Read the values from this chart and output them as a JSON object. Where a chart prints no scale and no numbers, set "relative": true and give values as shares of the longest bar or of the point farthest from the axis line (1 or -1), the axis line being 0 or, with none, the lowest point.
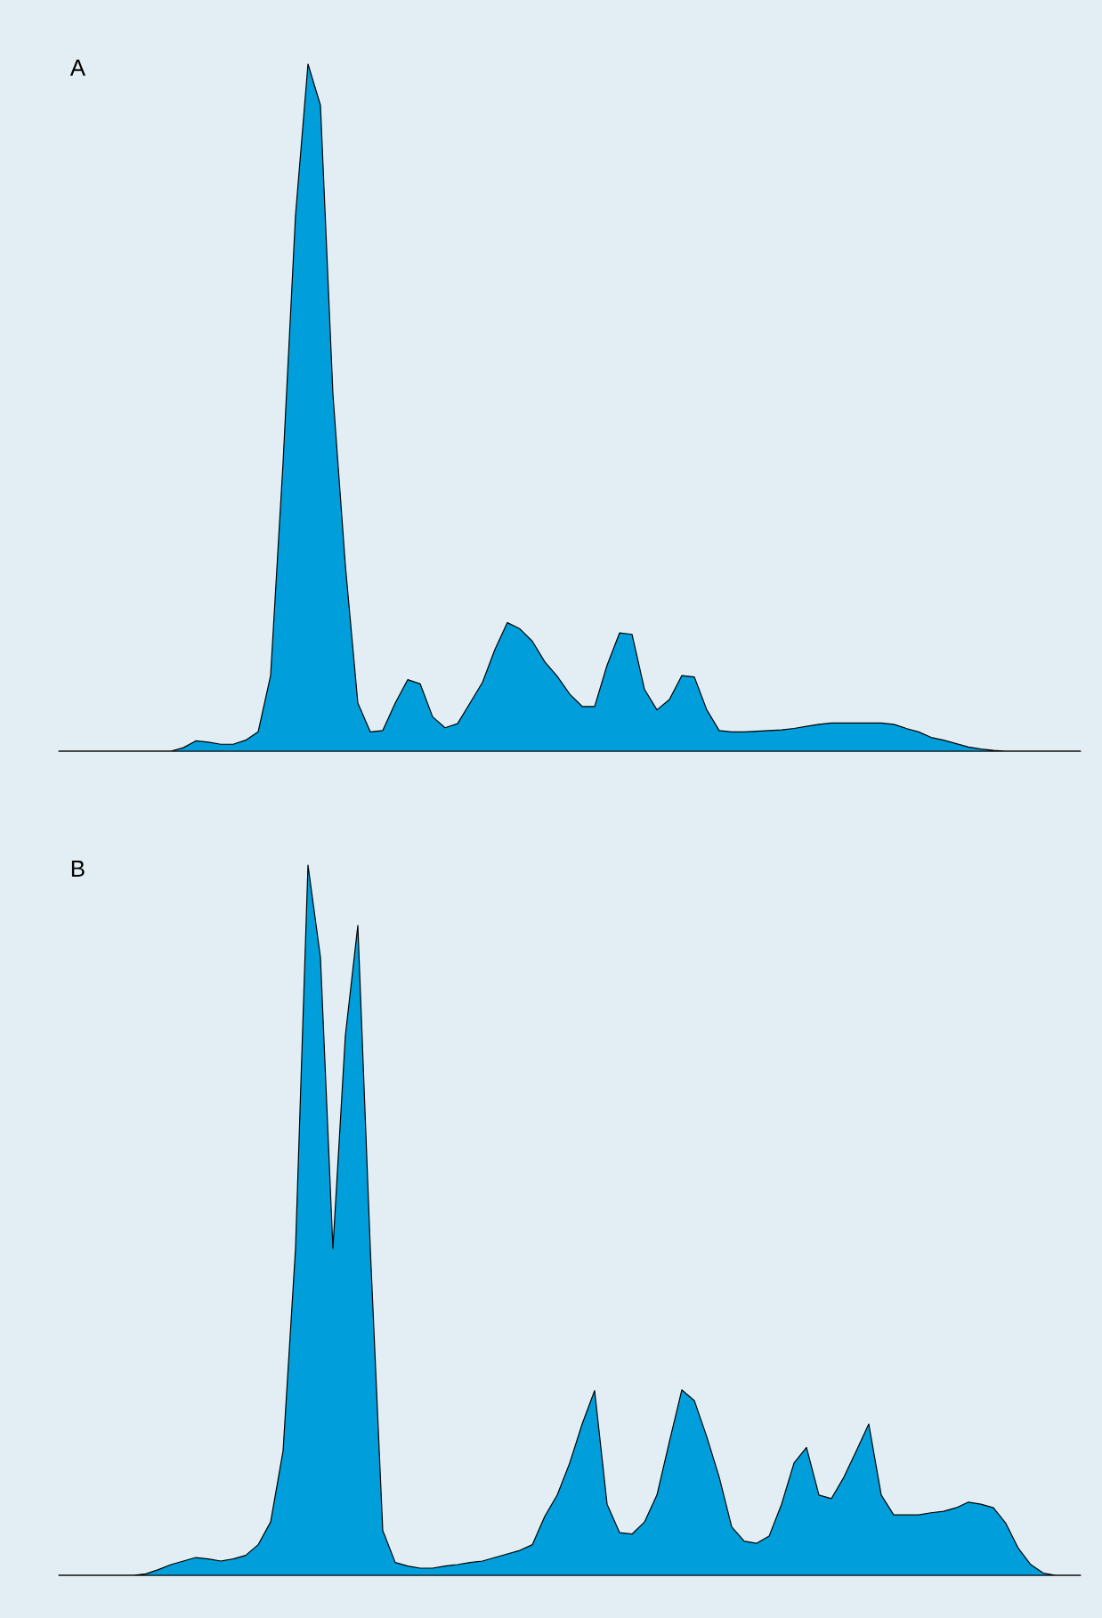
{
  "chart_data": [
    {
      "type": "area",
      "title": "A",
      "relative": true,
      "color": "#009fdb",
      "categories": [
        null,
        null,
        null,
        null,
        null,
        null,
        null,
        null,
        null,
        null,
        null,
        null,
        null,
        null,
        null,
        null,
        null,
        null,
        null,
        null,
        null,
        null,
        null,
        null,
        null,
        null,
        null,
        null,
        null,
        null,
        null,
        null,
        null,
        null,
        null,
        null,
        null,
        null,
        null,
        null,
        null,
        null,
        null,
        null,
        null,
        null,
        null,
        null,
        null,
        null,
        null,
        null,
        null,
        null,
        null,
        null,
        null,
        null,
        null,
        null,
        null,
        null,
        null,
        null,
        null,
        null,
        null,
        null,
        null,
        null,
        null,
        null,
        null,
        null,
        null,
        null,
        null,
        null,
        null,
        null,
        null,
        null,
        null
      ],
      "values": [
        0,
        0,
        0,
        0,
        0,
        0,
        0,
        0,
        0,
        0,
        0.005,
        0.015,
        0.013,
        0.01,
        0.01,
        0.016,
        0.028,
        0.11,
        0.42,
        0.78,
        1,
        0.94,
        0.52,
        0.27,
        0.07,
        0.028,
        0.03,
        0.07,
        0.104,
        0.098,
        0.05,
        0.034,
        0.04,
        0.07,
        0.1,
        0.148,
        0.187,
        0.178,
        0.16,
        0.13,
        0.109,
        0.083,
        0.065,
        0.065,
        0.125,
        0.172,
        0.17,
        0.09,
        0.06,
        0.075,
        0.11,
        0.108,
        0.06,
        0.03,
        0.028,
        0.028,
        0.029,
        0.03,
        0.031,
        0.033,
        0.036,
        0.039,
        0.041,
        0.041,
        0.041,
        0.041,
        0.041,
        0.039,
        0.033,
        0.028,
        0.02,
        0.016,
        0.011,
        0.006,
        0.003,
        0.001,
        0,
        0,
        0,
        0,
        0,
        0,
        0
      ]
    },
    {
      "type": "area",
      "title": "B",
      "relative": true,
      "color": "#009fdb",
      "categories": [
        null,
        null,
        null,
        null,
        null,
        null,
        null,
        null,
        null,
        null,
        null,
        null,
        null,
        null,
        null,
        null,
        null,
        null,
        null,
        null,
        null,
        null,
        null,
        null,
        null,
        null,
        null,
        null,
        null,
        null,
        null,
        null,
        null,
        null,
        null,
        null,
        null,
        null,
        null,
        null,
        null,
        null,
        null,
        null,
        null,
        null,
        null,
        null,
        null,
        null,
        null,
        null,
        null,
        null,
        null,
        null,
        null,
        null,
        null,
        null,
        null,
        null,
        null,
        null,
        null,
        null,
        null,
        null,
        null,
        null,
        null,
        null,
        null,
        null,
        null,
        null,
        null,
        null,
        null,
        null,
        null,
        null,
        null
      ],
      "values": [
        0,
        0,
        0,
        0,
        0,
        0,
        0,
        0.002,
        0.008,
        0.015,
        0.02,
        0.025,
        0.023,
        0.02,
        0.023,
        0.028,
        0.043,
        0.075,
        0.175,
        0.46,
        1,
        0.87,
        0.46,
        0.76,
        0.915,
        0.46,
        0.063,
        0.018,
        0.013,
        0.01,
        0.01,
        0.013,
        0.015,
        0.018,
        0.02,
        0.025,
        0.03,
        0.035,
        0.043,
        0.083,
        0.113,
        0.158,
        0.213,
        0.26,
        0.1,
        0.06,
        0.058,
        0.075,
        0.113,
        0.188,
        0.261,
        0.246,
        0.195,
        0.138,
        0.068,
        0.048,
        0.045,
        0.055,
        0.1,
        0.158,
        0.18,
        0.113,
        0.108,
        0.138,
        0.175,
        0.213,
        0.113,
        0.085,
        0.085,
        0.085,
        0.088,
        0.09,
        0.095,
        0.103,
        0.1,
        0.095,
        0.073,
        0.038,
        0.015,
        0.003,
        0,
        0,
        0
      ]
    }
  ]
}
